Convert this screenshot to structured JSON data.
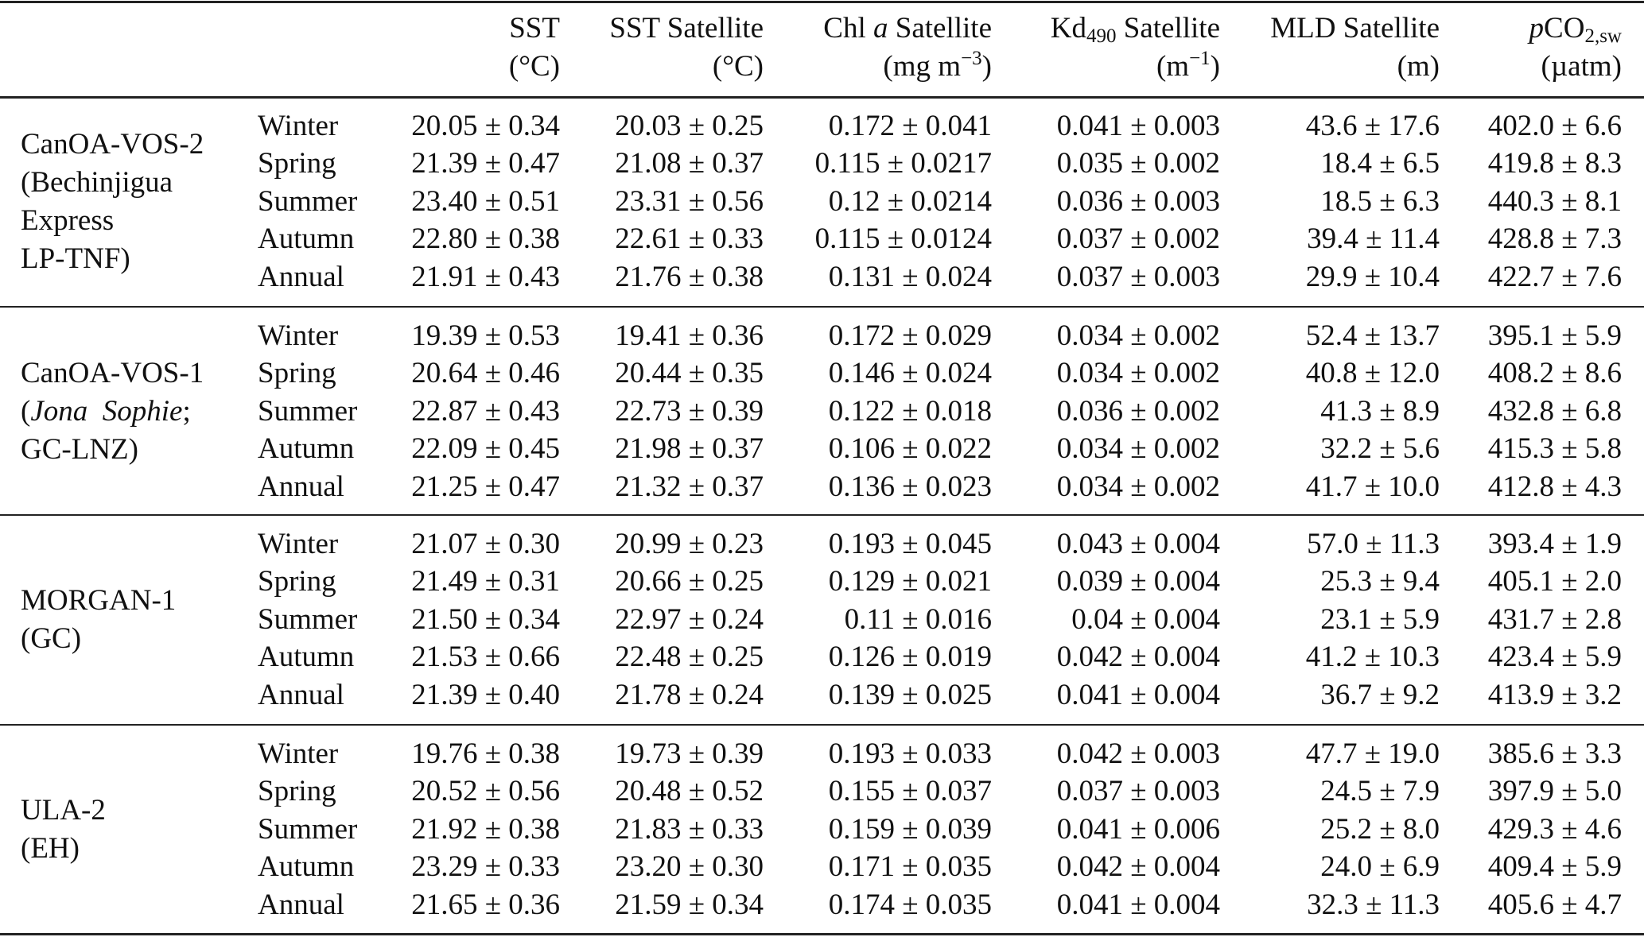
{
  "header": {
    "sst": {
      "name": "SST",
      "unit": "(°C)"
    },
    "sst_sat": {
      "name": "SST Satellite",
      "unit": "(°C)"
    },
    "chl": {
      "name_pre": "Chl ",
      "name_it": "a",
      "name_post": " Satellite",
      "unit_pre": "(mg m",
      "unit_sup": "−3",
      "unit_post": ")"
    },
    "kd": {
      "name_pre": "Kd",
      "name_sub": "490",
      "name_post": " Satellite",
      "unit_pre": "(m",
      "unit_sup": "−1",
      "unit_post": ")"
    },
    "mld": {
      "name": "MLD Satellite",
      "unit": "(m)"
    },
    "pco2": {
      "name_it": "p",
      "name_main": "CO",
      "name_sub": "2,sw",
      "unit": "(µatm)"
    }
  },
  "groups": [
    {
      "site_lines": [
        {
          "text": "CanOA-VOS-2"
        },
        {
          "text": "(Bechinjigua"
        },
        {
          "text": "Express"
        },
        {
          "text": "LP-TNF)"
        }
      ],
      "rows": [
        {
          "season": "Winter",
          "values": [
            "20.05 ± 0.34",
            "20.03 ± 0.25",
            "0.172 ± 0.041",
            "0.041 ± 0.003",
            "43.6 ± 17.6",
            "402.0 ± 6.6"
          ]
        },
        {
          "season": "Spring",
          "values": [
            "21.39 ± 0.47",
            "21.08 ± 0.37",
            "0.115 ± 0.0217",
            "0.035 ± 0.002",
            "18.4 ± 6.5",
            "419.8 ± 8.3"
          ]
        },
        {
          "season": "Summer",
          "values": [
            "23.40 ± 0.51",
            "23.31 ± 0.56",
            "0.12 ± 0.0214",
            "0.036 ± 0.003",
            "18.5 ± 6.3",
            "440.3 ± 8.1"
          ]
        },
        {
          "season": "Autumn",
          "values": [
            "22.80 ± 0.38",
            "22.61 ± 0.33",
            "0.115 ± 0.0124",
            "0.037 ± 0.002",
            "39.4 ± 11.4",
            "428.8 ± 7.3"
          ]
        },
        {
          "season": "Annual",
          "values": [
            "21.91 ± 0.43",
            "21.76 ± 0.38",
            "0.131 ± 0.024",
            "0.037 ± 0.003",
            "29.9 ± 10.4",
            "422.7 ± 7.6"
          ]
        }
      ]
    },
    {
      "site_lines": [
        {
          "text": "CanOA-VOS-1"
        },
        {
          "pre": "(",
          "it": "Jona  Sophie",
          "post": ";"
        },
        {
          "text": "GC-LNZ)"
        }
      ],
      "rows": [
        {
          "season": "Winter",
          "values": [
            "19.39 ± 0.53",
            "19.41 ± 0.36",
            "0.172 ± 0.029",
            "0.034 ± 0.002",
            "52.4 ± 13.7",
            "395.1 ± 5.9"
          ]
        },
        {
          "season": "Spring",
          "values": [
            "20.64 ± 0.46",
            "20.44 ± 0.35",
            "0.146 ± 0.024",
            "0.034 ± 0.002",
            "40.8 ± 12.0",
            "408.2 ± 8.6"
          ]
        },
        {
          "season": "Summer",
          "values": [
            "22.87 ± 0.43",
            "22.73 ± 0.39",
            "0.122 ± 0.018",
            "0.036 ± 0.002",
            "41.3 ± 8.9",
            "432.8 ± 6.8"
          ]
        },
        {
          "season": "Autumn",
          "values": [
            "22.09 ± 0.45",
            "21.98 ± 0.37",
            "0.106 ± 0.022",
            "0.034 ± 0.002",
            "32.2 ± 5.6",
            "415.3 ± 5.8"
          ]
        },
        {
          "season": "Annual",
          "values": [
            "21.25 ± 0.47",
            "21.32 ± 0.37",
            "0.136 ± 0.023",
            "0.034 ± 0.002",
            "41.7 ± 10.0",
            "412.8 ± 4.3"
          ]
        }
      ]
    },
    {
      "site_lines": [
        {
          "text": "MORGAN-1"
        },
        {
          "text": "(GC)"
        }
      ],
      "rows": [
        {
          "season": "Winter",
          "values": [
            "21.07 ± 0.30",
            "20.99 ± 0.23",
            "0.193 ± 0.045",
            "0.043 ± 0.004",
            "57.0 ± 11.3",
            "393.4 ± 1.9"
          ]
        },
        {
          "season": "Spring",
          "values": [
            "21.49 ± 0.31",
            "20.66 ± 0.25",
            "0.129 ± 0.021",
            "0.039 ± 0.004",
            "25.3 ± 9.4",
            "405.1 ± 2.0"
          ]
        },
        {
          "season": "Summer",
          "values": [
            "21.50 ± 0.34",
            "22.97 ± 0.24",
            "0.11 ± 0.016",
            "0.04 ± 0.004",
            "23.1 ± 5.9",
            "431.7 ± 2.8"
          ]
        },
        {
          "season": "Autumn",
          "values": [
            "21.53 ± 0.66",
            "22.48 ± 0.25",
            "0.126 ± 0.019",
            "0.042 ± 0.004",
            "41.2 ± 10.3",
            "423.4 ± 5.9"
          ]
        },
        {
          "season": "Annual",
          "values": [
            "21.39 ± 0.40",
            "21.78 ± 0.24",
            "0.139 ± 0.025",
            "0.041 ± 0.004",
            "36.7 ± 9.2",
            "413.9 ± 3.2"
          ]
        }
      ]
    },
    {
      "site_lines": [
        {
          "text": "ULA-2"
        },
        {
          "text": "(EH)"
        }
      ],
      "rows": [
        {
          "season": "Winter",
          "values": [
            "19.76 ± 0.38",
            "19.73 ± 0.39",
            "0.193 ± 0.033",
            "0.042 ± 0.003",
            "47.7 ± 19.0",
            "385.6 ± 3.3"
          ]
        },
        {
          "season": "Spring",
          "values": [
            "20.52 ± 0.56",
            "20.48 ± 0.52",
            "0.155 ± 0.037",
            "0.037 ± 0.003",
            "24.5 ± 7.9",
            "397.9 ± 5.0"
          ]
        },
        {
          "season": "Summer",
          "values": [
            "21.92 ± 0.38",
            "21.83 ± 0.33",
            "0.159 ± 0.039",
            "0.041 ± 0.006",
            "25.2 ± 8.0",
            "429.3 ± 4.6"
          ]
        },
        {
          "season": "Autumn",
          "values": [
            "23.29 ± 0.33",
            "23.20 ± 0.30",
            "0.171 ± 0.035",
            "0.042 ± 0.004",
            "24.0 ± 6.9",
            "409.4 ± 5.9"
          ]
        },
        {
          "season": "Annual",
          "values": [
            "21.65 ± 0.36",
            "21.59 ± 0.34",
            "0.174 ± 0.035",
            "0.041 ± 0.004",
            "32.3 ± 11.3",
            "405.6 ± 4.7"
          ]
        }
      ]
    }
  ]
}
